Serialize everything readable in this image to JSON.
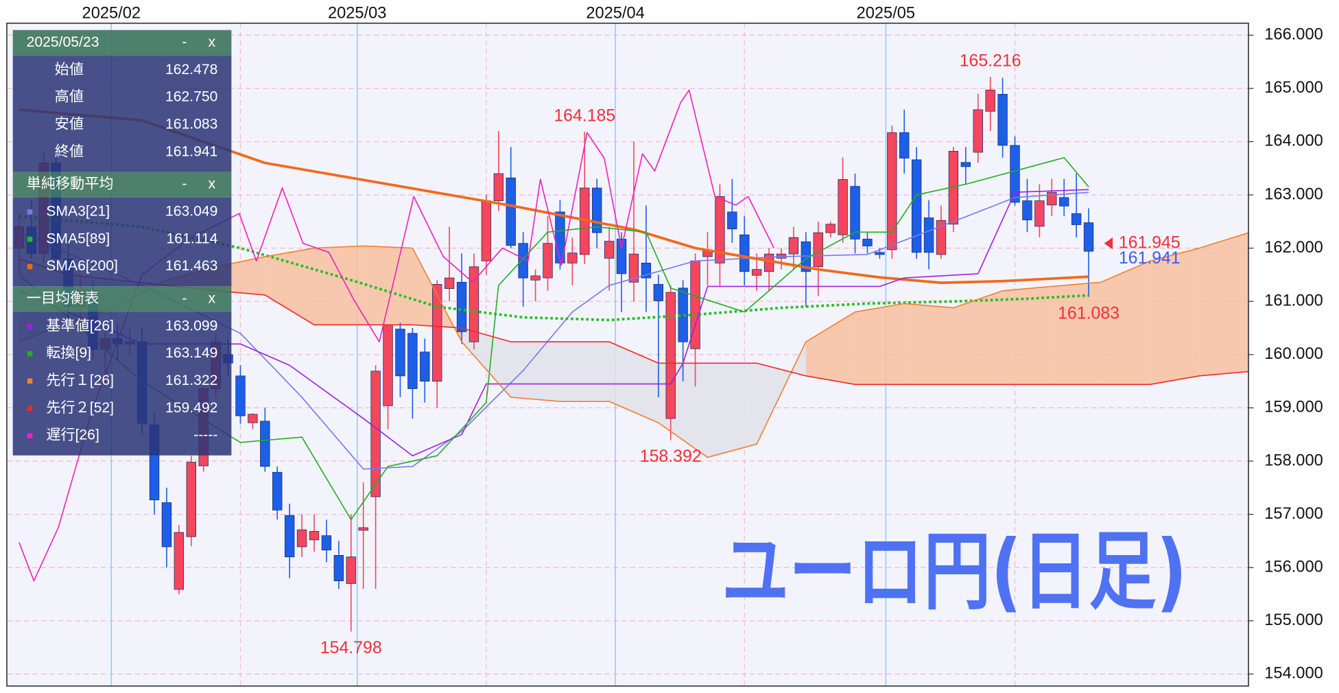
{
  "chart_data": {
    "type": "candlestick",
    "categories": [
      null,
      null,
      null,
      null,
      null,
      null,
      null,
      null,
      "2025/02",
      null,
      null,
      null,
      null,
      null,
      null,
      null,
      null,
      null,
      null,
      null,
      null,
      null,
      null,
      null,
      null,
      null,
      null,
      null,
      "2025/03",
      null,
      null,
      null,
      null,
      null,
      null,
      null,
      null,
      null,
      null,
      null,
      null,
      null,
      null,
      null,
      null,
      null,
      null,
      null,
      null,
      "2025/04",
      null,
      null,
      null,
      null,
      null,
      null,
      null,
      null,
      null,
      null,
      null,
      null,
      null,
      null,
      null,
      null,
      null,
      null,
      null,
      null,
      null,
      "2025/05",
      null,
      null,
      null,
      null,
      null,
      null,
      null,
      null,
      null,
      null,
      null,
      null,
      null,
      null,
      null,
      null
    ],
    "open": [
      162.0,
      162.4,
      161.9,
      163.6,
      161.8,
      160.9,
      161.2,
      160.1,
      160.3,
      160.2,
      160.24,
      158.68,
      157.22,
      155.59,
      156.58,
      157.91,
      159.36,
      160.0,
      159.6,
      158.72,
      158.75,
      157.79,
      156.98,
      156.39,
      156.52,
      156.6,
      156.23,
      155.7,
      156.7,
      157.33,
      159.04,
      160.48,
      160.4,
      160.05,
      159.5,
      161.24,
      161.36,
      160.24,
      161.76,
      162.89,
      163.32,
      162.09,
      161.4,
      161.44,
      162.68,
      161.72,
      161.88,
      163.13,
      161.81,
      162.17,
      161.36,
      161.72,
      161.32,
      158.8,
      161.25,
      160.11,
      161.84,
      161.72,
      162.68,
      162.25,
      161.49,
      161.56,
      161.81,
      161.89,
      162.12,
      161.65,
      162.29,
      162.25,
      163.16,
      162.17,
      161.92,
      161.97,
      164.17,
      163.66,
      162.57,
      161.88,
      162.45,
      163.61,
      163.8,
      164.57,
      164.89,
      163.93,
      162.89,
      162.41,
      162.81,
      162.95,
      162.65,
      162.478
    ],
    "high": [
      162.6,
      162.9,
      163.8,
      163.9,
      162.2,
      161.5,
      161.4,
      160.5,
      160.6,
      160.5,
      160.5,
      158.9,
      157.5,
      156.8,
      158.1,
      159.5,
      160.4,
      160.3,
      159.8,
      158.9,
      159.0,
      157.9,
      157.2,
      157.0,
      157.0,
      156.9,
      156.5,
      157.0,
      157.6,
      159.8,
      160.5,
      160.6,
      160.5,
      160.3,
      161.4,
      162.4,
      161.9,
      161.9,
      163.0,
      164.2,
      163.9,
      162.3,
      161.6,
      162.6,
      162.9,
      162.2,
      164.185,
      163.3,
      162.4,
      162.3,
      164.0,
      162.8,
      161.5,
      161.3,
      161.4,
      161.9,
      162.3,
      163.2,
      163.3,
      162.6,
      161.9,
      162.0,
      162.0,
      162.4,
      162.3,
      162.5,
      162.5,
      163.7,
      163.4,
      162.3,
      162.0,
      164.3,
      164.6,
      163.9,
      162.9,
      162.8,
      163.9,
      163.9,
      164.9,
      165.216,
      165.2,
      164.1,
      163.3,
      163.2,
      163.3,
      163.3,
      163.4,
      162.75
    ],
    "low": [
      161.5,
      161.8,
      161.7,
      161.6,
      160.6,
      160.4,
      159.9,
      159.4,
      159.9,
      160.0,
      158.5,
      157.0,
      156.0,
      155.5,
      156.4,
      157.8,
      159.2,
      159.6,
      158.7,
      158.6,
      157.8,
      156.9,
      155.8,
      156.2,
      156.3,
      156.1,
      155.6,
      154.798,
      155.6,
      155.6,
      158.6,
      159.2,
      158.8,
      159.1,
      159.0,
      161.0,
      160.2,
      160.1,
      161.5,
      162.7,
      162.0,
      160.9,
      161.0,
      161.2,
      161.6,
      161.3,
      161.7,
      162.0,
      161.2,
      160.8,
      161.0,
      160.8,
      159.2,
      158.392,
      159.5,
      159.4,
      161.3,
      161.3,
      162.1,
      161.3,
      161.2,
      161.2,
      161.6,
      161.6,
      160.9,
      161.1,
      162.2,
      162.1,
      161.9,
      161.9,
      161.8,
      161.8,
      163.4,
      161.8,
      161.6,
      161.8,
      162.3,
      163.2,
      163.6,
      164.2,
      163.7,
      162.8,
      162.3,
      162.2,
      162.6,
      162.6,
      162.2,
      161.083
    ],
    "close": [
      162.4,
      161.9,
      163.6,
      161.8,
      160.9,
      161.2,
      160.1,
      160.3,
      160.2,
      160.24,
      158.71,
      157.27,
      156.39,
      156.66,
      157.98,
      159.36,
      160.24,
      159.84,
      158.85,
      158.88,
      157.9,
      157.08,
      156.2,
      156.71,
      156.68,
      156.33,
      155.75,
      156.2,
      156.75,
      159.69,
      160.56,
      159.6,
      159.36,
      159.5,
      161.32,
      161.44,
      160.43,
      161.65,
      162.89,
      163.4,
      162.05,
      161.44,
      161.48,
      162.09,
      161.72,
      161.91,
      163.13,
      162.29,
      162.13,
      161.52,
      161.89,
      161.44,
      161.01,
      161.17,
      160.24,
      161.76,
      161.96,
      162.97,
      162.36,
      161.56,
      161.6,
      161.89,
      161.89,
      162.2,
      161.56,
      162.29,
      162.45,
      163.29,
      162.17,
      162.04,
      161.88,
      164.17,
      163.69,
      161.92,
      161.92,
      162.52,
      163.82,
      163.53,
      164.6,
      164.97,
      163.93,
      162.86,
      162.53,
      162.89,
      163.05,
      162.79,
      162.44,
      161.941
    ],
    "up_color": "#f4465c",
    "down_color": "#1d5fe6",
    "xlim": [
      -1,
      100
    ],
    "ylim": [
      153.775,
      166.225
    ],
    "yticks": [
      {
        "value": 154,
        "label": "154.000"
      },
      {
        "value": 155,
        "label": "155.000"
      },
      {
        "value": 156,
        "label": "156.000"
      },
      {
        "value": 157,
        "label": "157.000"
      },
      {
        "value": 158,
        "label": "158.000"
      },
      {
        "value": 159,
        "label": "159.000"
      },
      {
        "value": 160,
        "label": "160.000"
      },
      {
        "value": 161,
        "label": "161.000"
      },
      {
        "value": 162,
        "label": "162.000"
      },
      {
        "value": 163,
        "label": "163.000"
      },
      {
        "value": 164,
        "label": "164.000"
      },
      {
        "value": 165,
        "label": "165.000"
      },
      {
        "value": 166,
        "label": "166.000"
      }
    ],
    "grid": true,
    "ohlc_panel": {
      "title": "2025/05/23",
      "rows": [
        {
          "label": "始値",
          "value": "162.478"
        },
        {
          "label": "高値",
          "value": "162.750"
        },
        {
          "label": "安値",
          "value": "161.083"
        },
        {
          "label": "終値",
          "value": "161.941"
        }
      ]
    },
    "panel_buttons": [
      "-",
      "x"
    ],
    "indicator_groups": [
      {
        "title": "単純移動平均",
        "series": [
          {
            "name": "SMA3[21]",
            "color": "#7878f0",
            "value_label": "163.049",
            "x": [
              0,
              10,
              18,
              23,
              28,
              32,
              36,
              41,
              45,
              48,
              55,
              62,
              69,
              76,
              81,
              87
            ],
            "values": [
              162.3,
              161.3,
              160.4,
              159.2,
              157.85,
              157.9,
              158.56,
              159.7,
              160.8,
              161.3,
              161.76,
              161.84,
              161.88,
              162.5,
              162.95,
              163.049
            ]
          },
          {
            "name": "SMA5[89]",
            "color": "#22c022",
            "style": "dotted",
            "value_label": "161.114",
            "x": [
              0,
              10,
              18,
              27,
              34,
              41,
              48,
              55,
              62,
              69,
              76,
              82,
              87
            ],
            "values": [
              162.6,
              162.4,
              162.0,
              161.4,
              160.9,
              160.7,
              160.65,
              160.75,
              160.88,
              160.96,
              161.0,
              161.05,
              161.114
            ]
          },
          {
            "name": "SMA6[200]",
            "color": "#f06a1a",
            "style": "thick",
            "value_label": "161.463",
            "x": [
              0,
              10,
              20,
              30,
              40,
              50,
              55,
              60,
              65,
              70,
              75,
              80,
              87
            ],
            "values": [
              164.6,
              164.4,
              163.6,
              163.2,
              162.8,
              162.35,
              162.0,
              161.8,
              161.6,
              161.45,
              161.35,
              161.38,
              161.463
            ]
          }
        ]
      },
      {
        "title": "一目均衡表",
        "series": [
          {
            "name": "基準値[26]",
            "color": "#a020e0",
            "value_label": "163.099",
            "x": [
              0,
              10,
              18,
              22,
              28,
              32,
              36,
              38,
              48,
              53,
              54,
              56,
              70,
              72,
              78,
              81,
              87
            ],
            "values": [
              161.2,
              160.2,
              160.2,
              159.8,
              158.8,
              158.1,
              158.5,
              159.45,
              159.45,
              159.45,
              159.84,
              161.28,
              161.28,
              161.44,
              161.52,
              163.05,
              163.099
            ]
          },
          {
            "name": "転換[9]",
            "color": "#20b020",
            "value_label": "163.149",
            "x": [
              0,
              10,
              18,
              23,
              27,
              30,
              34,
              38,
              39,
              43,
              47,
              51,
              53,
              59,
              64,
              68,
              71,
              73,
              77,
              81,
              85,
              87
            ],
            "values": [
              161.5,
              159.5,
              158.35,
              158.45,
              156.9,
              157.9,
              158.1,
              159.1,
              161.3,
              162.3,
              162.4,
              162.3,
              161.25,
              160.8,
              161.8,
              162.3,
              162.3,
              163.0,
              163.2,
              163.45,
              163.7,
              163.149
            ]
          },
          {
            "name": "先行１[26]",
            "color": "#f08030",
            "value_label": "161.322",
            "fill": {
              "above": "#f7bf9f",
              "below": "#e1e1ea"
            },
            "x": [
              0,
              4,
              8,
              12,
              16,
              20,
              24,
              28,
              32,
              36,
              40,
              44,
              48,
              52,
              56,
              60,
              64,
              68,
              72,
              76,
              80,
              84,
              88,
              92,
              96,
              100
            ],
            "values": [
              160.24,
              160.6,
              160.9,
              161.4,
              161.65,
              161.84,
              162.0,
              162.04,
              162.0,
              160.24,
              159.2,
              159.12,
              159.12,
              158.72,
              158.07,
              158.32,
              160.24,
              160.8,
              160.96,
              160.88,
              161.2,
              161.28,
              161.36,
              161.76,
              162.0,
              162.29
            ]
          },
          {
            "name": "先行２[52]",
            "color": "#f02828",
            "value_label": "159.492",
            "x": [
              0,
              4,
              8,
              12,
              16,
              20,
              24,
              28,
              32,
              36,
              40,
              44,
              48,
              52,
              56,
              60,
              64,
              68,
              72,
              76,
              80,
              84,
              88,
              92,
              96,
              100
            ],
            "values": [
              161.8,
              161.5,
              161.4,
              161.3,
              161.2,
              161.12,
              160.56,
              160.56,
              160.56,
              160.5,
              160.24,
              160.24,
              160.24,
              159.84,
              159.84,
              159.84,
              159.6,
              159.44,
              159.44,
              159.44,
              159.44,
              159.44,
              159.44,
              159.44,
              159.6,
              159.68
            ]
          },
          {
            "name": "遅行[26]",
            "color": "#f020c0",
            "value_label": "-----",
            "x": [
              0,
              1.2,
              3.2,
              6,
              10,
              14,
              17.9,
              19.3,
              21.4,
              23.1,
              25.2,
              27.2,
              29.3,
              32.1,
              34.5,
              36.9,
              39.3,
              41.4,
              42.4,
              44.1,
              46.2,
              47.6,
              49.0,
              50.7,
              51.7,
              53.8,
              54.5,
              56.6,
              58.3,
              59.3,
              61.4
            ],
            "values": [
              156.47,
              155.75,
              156.76,
              159.0,
              161.5,
              162.2,
              162.65,
              161.76,
              163.13,
              162.09,
              161.92,
              161.04,
              160.24,
              162.97,
              161.84,
              161.36,
              162.0,
              161.76,
              163.29,
              161.68,
              164.17,
              163.69,
              162.0,
              163.77,
              163.45,
              164.73,
              164.97,
              162.97,
              162.81,
              162.97,
              162.0
            ]
          }
        ]
      }
    ],
    "annotations": [
      {
        "value": 165.216,
        "index": 79,
        "position": "above",
        "color": "#f0303a"
      },
      {
        "value": 164.185,
        "index": 46,
        "position": "above",
        "color": "#f0303a"
      },
      {
        "value": 158.392,
        "index": 53,
        "position": "below",
        "color": "#f0303a"
      },
      {
        "value": 154.798,
        "index": 27,
        "position": "below",
        "color": "#f0303a"
      },
      {
        "value": 161.083,
        "index": 87,
        "position": "below",
        "color": "#f0303a"
      }
    ],
    "price_markers": [
      {
        "value": 161.945,
        "color": "#f0303a"
      },
      {
        "value": 161.941,
        "color": "#3a5ef0"
      }
    ],
    "watermark": {
      "text": "ユーロ円(日足)",
      "color": "#4f72f2"
    }
  }
}
